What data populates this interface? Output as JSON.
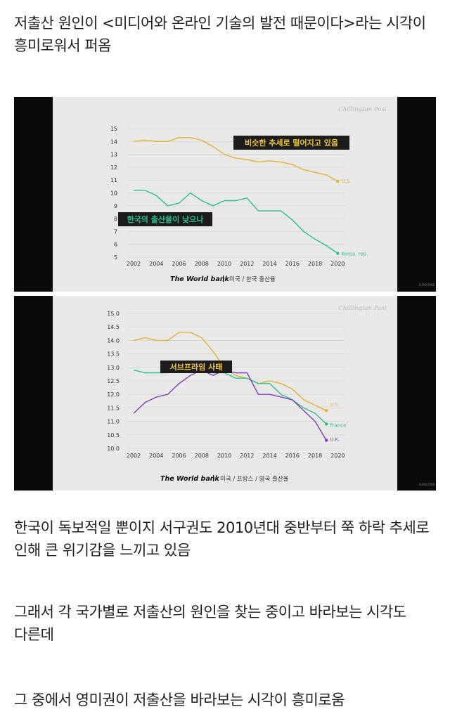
{
  "intro_text": "저출산 원인이 <미디어와 온라인 기술의 발전 때문이다>라는 시각이 흥미로워서 퍼옴",
  "paragraphs": [
    "한국이 독보적일 뿐이지 서구권도 2010년대 중반부터 쭉 하락 추세로 인해 큰 위기감을 느끼고 있음",
    "그래서 각 국가별로 저출산의 원인을 찾는 중이고 바라보는 시각도 다른데",
    "그 중에서 영미권이 저출산을 바라보는 시각이 흥미로움"
  ],
  "colors": {
    "us": "#e2b13a",
    "korea": "#2fbf8c",
    "france": "#2fbf8c",
    "uk": "#7d3fb5",
    "annotation_text": "#f0c53a"
  },
  "chart_data": [
    {
      "type": "line",
      "watermark": "Chillingtan Post",
      "source_label": "The World bank",
      "caption": "미국 / 한국 출산율",
      "annotations": [
        "비슷한 추세로 떨어지고 있음",
        "한국의 출산율이 낮으나"
      ],
      "subscribe_label": "SUBSCRIBE",
      "x_ticks": [
        "2002",
        "2004",
        "2006",
        "2008",
        "2010",
        "2012",
        "2014",
        "2016",
        "2018",
        "2020"
      ],
      "y_ticks": [
        "5",
        "6",
        "7",
        "8",
        "9",
        "10",
        "11",
        "12",
        "13",
        "14",
        "15"
      ],
      "xlim": [
        2001.5,
        2020.6
      ],
      "ylim": [
        5,
        15
      ],
      "series": [
        {
          "name": "U.S.",
          "color_key": "us",
          "x": [
            2002,
            2003,
            2004,
            2005,
            2006,
            2007,
            2008,
            2009,
            2010,
            2011,
            2012,
            2013,
            2014,
            2015,
            2016,
            2017,
            2018,
            2019,
            2020
          ],
          "y": [
            14.0,
            14.1,
            14.0,
            14.0,
            14.3,
            14.3,
            14.1,
            13.6,
            13.0,
            12.7,
            12.6,
            12.4,
            12.5,
            12.4,
            12.2,
            11.8,
            11.6,
            11.4,
            10.9
          ]
        },
        {
          "name": "Korea. rep.",
          "color_key": "korea",
          "x": [
            2002,
            2003,
            2004,
            2005,
            2006,
            2007,
            2008,
            2009,
            2010,
            2011,
            2012,
            2013,
            2014,
            2015,
            2016,
            2017,
            2018,
            2019,
            2020
          ],
          "y": [
            10.2,
            10.2,
            9.8,
            9.0,
            9.2,
            10.0,
            9.4,
            9.0,
            9.4,
            9.4,
            9.6,
            8.6,
            8.6,
            8.6,
            7.9,
            7.0,
            6.4,
            5.9,
            5.3
          ]
        }
      ]
    },
    {
      "type": "line",
      "watermark": "Chillingtan Post",
      "source_label": "The World bank",
      "caption": "미국 / 프랑스 / 영국 출산율",
      "annotations": [
        "서브프라임 사태"
      ],
      "subscribe_label": "SUBSCRIBE",
      "x_ticks": [
        "2002",
        "2004",
        "2006",
        "2008",
        "2010",
        "2012",
        "2014",
        "2016",
        "2018",
        "2020"
      ],
      "y_ticks": [
        "10.0",
        "10.5",
        "11.0",
        "11.5",
        "12.0",
        "12.5",
        "13.0",
        "13.5",
        "14.0",
        "14.5",
        "15.0"
      ],
      "xlim": [
        2001.5,
        2020.6
      ],
      "ylim": [
        10,
        15
      ],
      "series": [
        {
          "name": "U.S.",
          "color_key": "us",
          "x": [
            2002,
            2003,
            2004,
            2005,
            2006,
            2007,
            2008,
            2009,
            2010,
            2011,
            2012,
            2013,
            2014,
            2015,
            2016,
            2017,
            2018,
            2019
          ],
          "y": [
            14.0,
            14.1,
            14.0,
            14.0,
            14.3,
            14.3,
            14.1,
            13.6,
            13.0,
            12.7,
            12.6,
            12.4,
            12.5,
            12.4,
            12.2,
            11.8,
            11.6,
            11.4
          ]
        },
        {
          "name": "France",
          "color_key": "france",
          "x": [
            2002,
            2003,
            2004,
            2005,
            2006,
            2007,
            2008,
            2009,
            2010,
            2011,
            2012,
            2013,
            2014,
            2015,
            2016,
            2017,
            2018,
            2019
          ],
          "y": [
            12.9,
            12.8,
            12.8,
            12.8,
            13.1,
            12.8,
            12.9,
            12.8,
            12.8,
            12.6,
            12.6,
            12.4,
            12.4,
            12.0,
            11.8,
            11.5,
            11.3,
            10.9
          ]
        },
        {
          "name": "U.K.",
          "color_key": "uk",
          "x": [
            2002,
            2003,
            2004,
            2005,
            2006,
            2007,
            2008,
            2009,
            2010,
            2011,
            2012,
            2013,
            2014,
            2015,
            2016,
            2017,
            2018,
            2019
          ],
          "y": [
            11.3,
            11.7,
            11.9,
            12.0,
            12.4,
            12.7,
            12.9,
            12.7,
            12.9,
            12.8,
            12.8,
            12.0,
            12.0,
            11.9,
            11.8,
            11.4,
            11.0,
            10.3
          ]
        }
      ]
    }
  ]
}
